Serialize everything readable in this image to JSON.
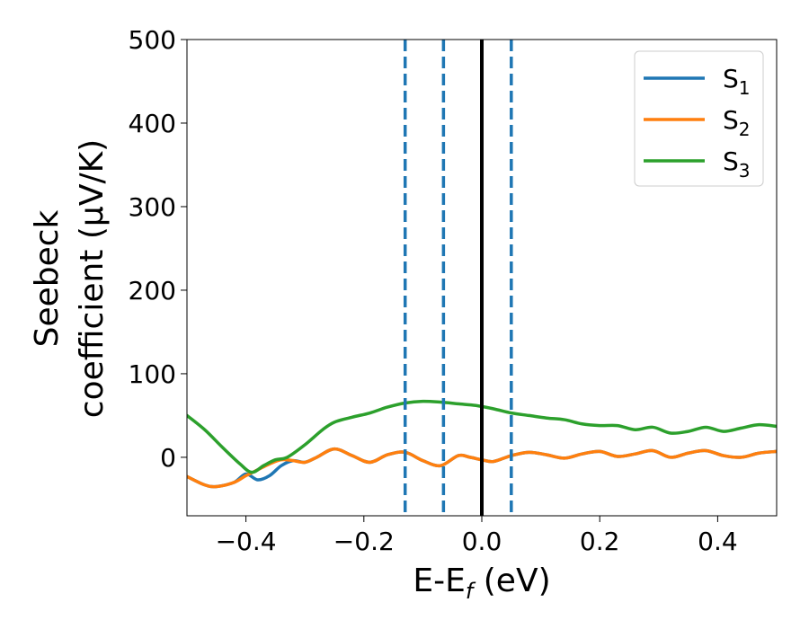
{
  "chart_data": {
    "type": "line",
    "xlabel": {
      "main": "E-E",
      "sub": "f",
      "suffix": " (eV)"
    },
    "ylabel": {
      "line1": "Seebeck",
      "line2": "coefficient  (μV/K)"
    },
    "xlim": [
      -0.5,
      0.5
    ],
    "ylim": [
      -70,
      500
    ],
    "xticks": [
      -0.4,
      -0.2,
      0.0,
      0.2,
      0.4
    ],
    "xtick_labels": [
      "−0.4",
      "−0.2",
      "0.0",
      "0.2",
      "0.4"
    ],
    "yticks": [
      0,
      100,
      200,
      300,
      400,
      500
    ],
    "ytick_labels": [
      "0",
      "100",
      "200",
      "300",
      "400",
      "500"
    ],
    "legend_position": "top-right",
    "vlines": [
      {
        "x": 0.0,
        "style": "solid",
        "color": "#000000"
      },
      {
        "x": -0.13,
        "style": "dashed",
        "color": "#1f77b4"
      },
      {
        "x": -0.065,
        "style": "dashed",
        "color": "#1f77b4"
      },
      {
        "x": 0.05,
        "style": "dashed",
        "color": "#1f77b4"
      }
    ],
    "series": [
      {
        "name": "S",
        "sub": "1",
        "color": "#1f77b4",
        "x": [
          -0.5,
          -0.47,
          -0.45,
          -0.42,
          -0.4,
          -0.38,
          -0.36,
          -0.34,
          -0.32,
          -0.3,
          -0.28,
          -0.25,
          -0.22,
          -0.19,
          -0.16,
          -0.13,
          -0.1,
          -0.07,
          -0.04,
          -0.02,
          0.0,
          0.02,
          0.05,
          0.08,
          0.11,
          0.14,
          0.17,
          0.2,
          0.23,
          0.26,
          0.29,
          0.32,
          0.35,
          0.38,
          0.41,
          0.44,
          0.47,
          0.5
        ],
        "y": [
          -23,
          -33,
          -35,
          -30,
          -20,
          -27,
          -22,
          -10,
          -4,
          -6,
          0,
          10,
          2,
          -6,
          3,
          6,
          -4,
          -10,
          2,
          0,
          -3,
          -5,
          2,
          6,
          3,
          -1,
          4,
          7,
          1,
          4,
          8,
          0,
          5,
          8,
          2,
          0,
          5,
          7
        ]
      },
      {
        "name": "S",
        "sub": "2",
        "color": "#ff7f0e",
        "x": [
          -0.5,
          -0.47,
          -0.45,
          -0.42,
          -0.4,
          -0.38,
          -0.36,
          -0.34,
          -0.32,
          -0.3,
          -0.28,
          -0.25,
          -0.22,
          -0.19,
          -0.16,
          -0.13,
          -0.1,
          -0.07,
          -0.04,
          -0.02,
          0.0,
          0.02,
          0.05,
          0.08,
          0.11,
          0.14,
          0.17,
          0.2,
          0.23,
          0.26,
          0.29,
          0.32,
          0.35,
          0.38,
          0.41,
          0.44,
          0.47,
          0.5
        ],
        "y": [
          -23,
          -33,
          -35,
          -30,
          -22,
          -15,
          -8,
          -3,
          -4,
          -6,
          0,
          10,
          2,
          -6,
          3,
          6,
          -4,
          -10,
          2,
          0,
          -3,
          -5,
          2,
          6,
          3,
          -1,
          4,
          7,
          1,
          4,
          8,
          0,
          5,
          8,
          2,
          0,
          5,
          7
        ]
      },
      {
        "name": "S",
        "sub": "3",
        "color": "#2ca02c",
        "x": [
          -0.5,
          -0.47,
          -0.44,
          -0.41,
          -0.39,
          -0.37,
          -0.35,
          -0.33,
          -0.3,
          -0.27,
          -0.25,
          -0.22,
          -0.19,
          -0.16,
          -0.13,
          -0.1,
          -0.07,
          -0.04,
          -0.01,
          0.02,
          0.05,
          0.08,
          0.11,
          0.14,
          0.17,
          0.2,
          0.23,
          0.26,
          0.29,
          0.32,
          0.35,
          0.38,
          0.41,
          0.44,
          0.47,
          0.5
        ],
        "y": [
          50,
          33,
          12,
          -8,
          -18,
          -10,
          -3,
          0,
          15,
          33,
          42,
          48,
          53,
          60,
          65,
          67,
          66,
          64,
          62,
          58,
          53,
          50,
          47,
          45,
          40,
          38,
          38,
          33,
          36,
          29,
          31,
          36,
          31,
          35,
          39,
          37
        ]
      }
    ]
  }
}
